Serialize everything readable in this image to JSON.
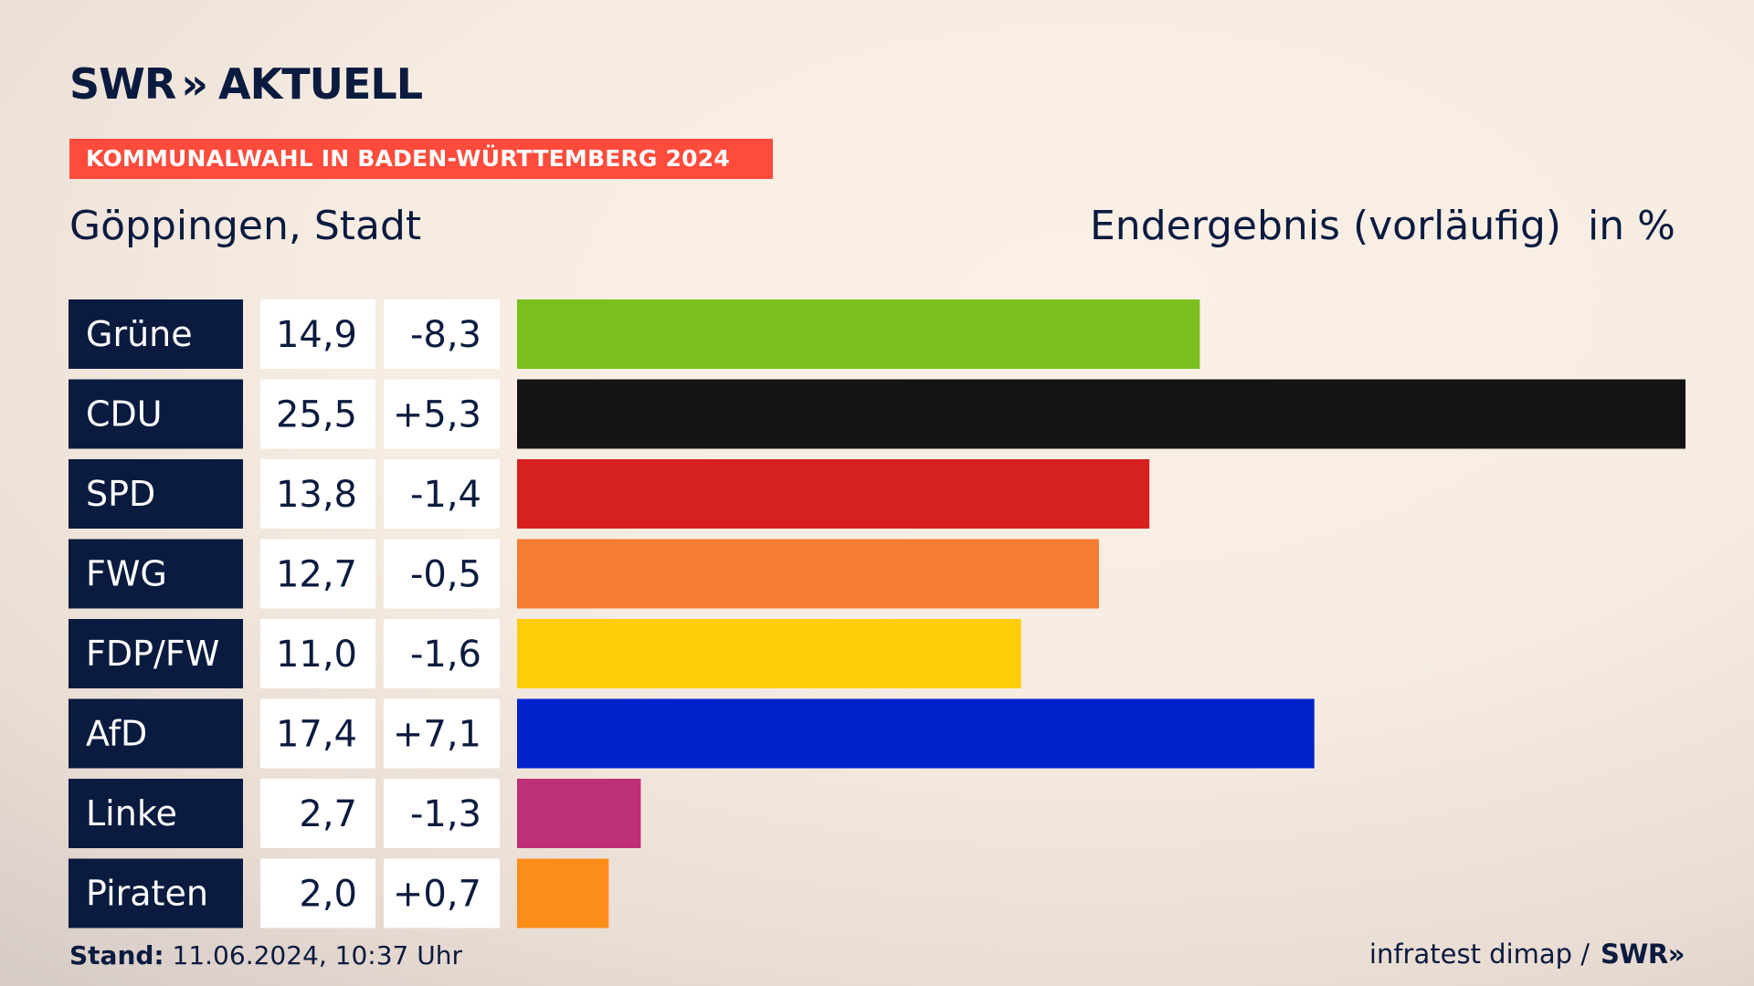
{
  "brand": {
    "logo_left": "SWR",
    "logo_chevron": "»",
    "logo_right": "AKTUELL"
  },
  "banner": {
    "text": "KOMMUNALWAHL IN BADEN-WÜRTTEMBERG 2024"
  },
  "header": {
    "place": "Göppingen, Stadt",
    "result_type": "Endergebnis (vorläufig)",
    "unit": "in %"
  },
  "chart_data": {
    "type": "bar",
    "orientation": "horizontal",
    "title": "Göppingen, Stadt",
    "subtitle": "Endergebnis (vorläufig)",
    "unit": "in %",
    "categories": [
      "Grüne",
      "CDU",
      "SPD",
      "FWG",
      "FDP/FW",
      "AfD",
      "Linke",
      "Piraten"
    ],
    "values": [
      14.9,
      25.5,
      13.8,
      12.7,
      11.0,
      17.4,
      2.7,
      2.0
    ],
    "value_labels": [
      "14,9",
      "25,5",
      "13,8",
      "12,7",
      "11,0",
      "17,4",
      "2,7",
      "2,0"
    ],
    "change_labels": [
      "-8,3",
      "+5,3",
      "-1,4",
      "-0,5",
      "-1,6",
      "+7,1",
      "-1,3",
      "+0,7"
    ],
    "colors": [
      "#7abf1e",
      "#141414",
      "#d72020",
      "#f77c33",
      "#ffcc0a",
      "#0022cc",
      "#bd3075",
      "#fd8d1a"
    ],
    "xlim": [
      0,
      25.5
    ],
    "xlabel": "",
    "ylabel": ""
  },
  "footer": {
    "stand_label": "Stand:",
    "stand_value": "11.06.2024, 10:37 Uhr",
    "source": "infratest dimap /",
    "source_brand": "SWR",
    "source_chevron": "»"
  },
  "colors": {
    "navy": "#0b1b3f",
    "accent_red": "#ff4b3c",
    "cell_bg": "#ffffff"
  }
}
